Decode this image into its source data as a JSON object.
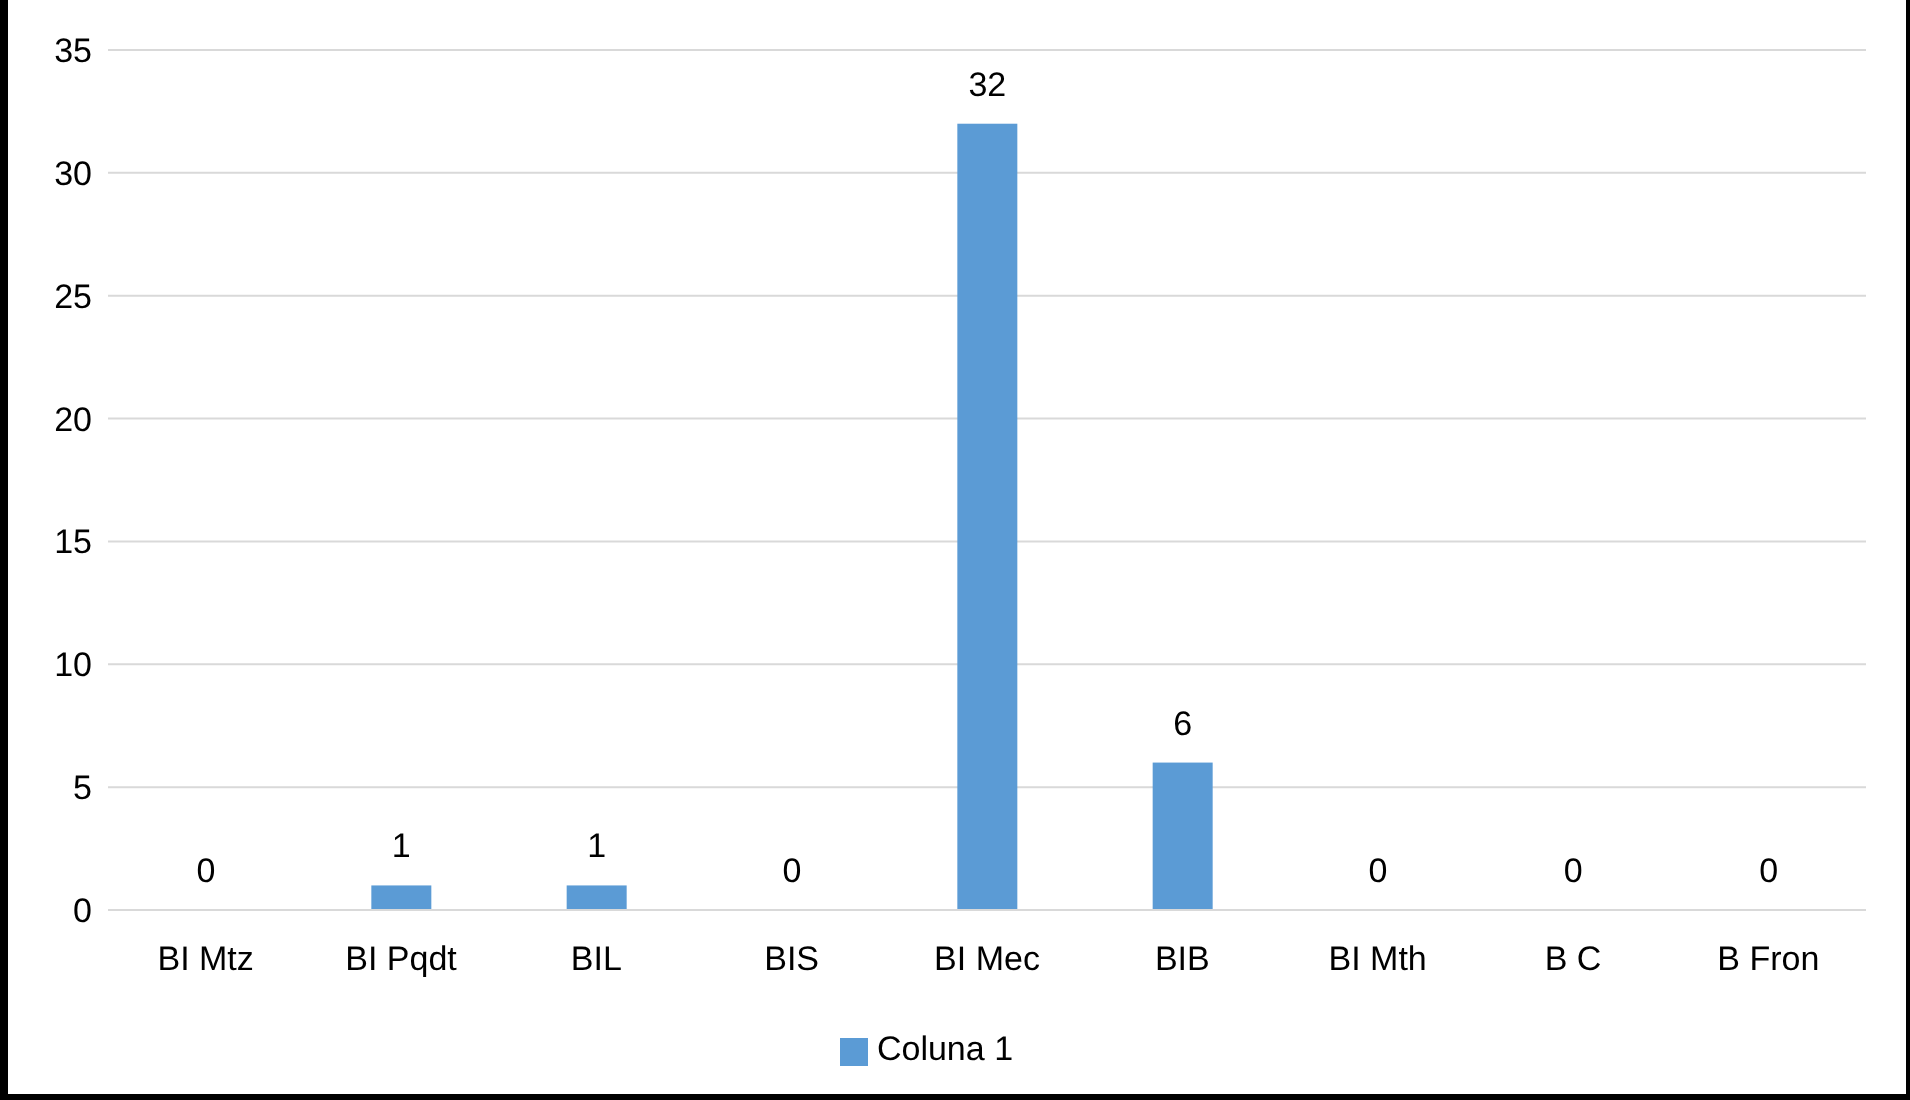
{
  "chart_data": {
    "type": "bar",
    "categories": [
      "BI Mtz",
      "BI Pqdt",
      "BIL",
      "BIS",
      "BI Mec",
      "BIB",
      "BI Mth",
      "B C",
      "B Fron"
    ],
    "series": [
      {
        "name": "Coluna 1",
        "color": "#5b9bd5",
        "values": [
          0,
          1,
          1,
          0,
          32,
          6,
          0,
          0,
          0
        ]
      }
    ],
    "ylim": [
      0,
      35
    ],
    "yticks": [
      0,
      5,
      10,
      15,
      20,
      25,
      30,
      35
    ],
    "grid": "y",
    "legend": "bottom",
    "data_labels": true
  }
}
